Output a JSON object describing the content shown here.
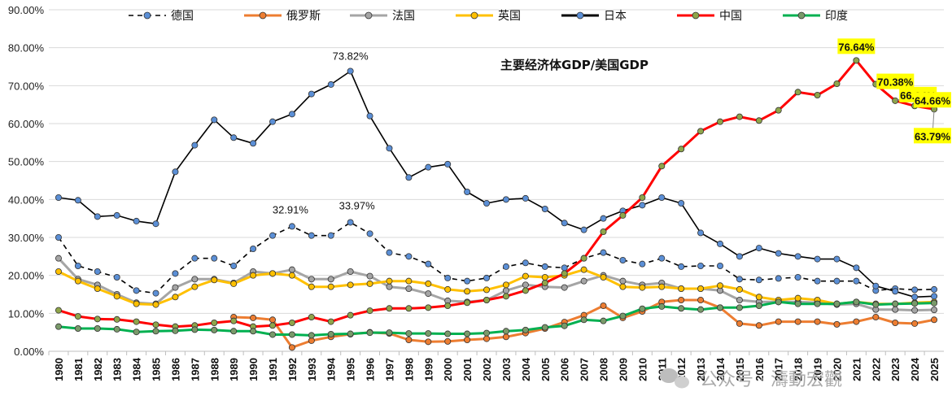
{
  "chart_data": {
    "type": "line",
    "title": "主要经济体GDP/美国GDP",
    "xlabel": "",
    "ylabel": "",
    "ylim": [
      0,
      90
    ],
    "yticks": [
      "0.00%",
      "10.00%",
      "20.00%",
      "30.00%",
      "40.00%",
      "50.00%",
      "60.00%",
      "70.00%",
      "80.00%",
      "90.00%"
    ],
    "grid": true,
    "legend_position": "top",
    "categories": [
      "1980",
      "1981",
      "1982",
      "1983",
      "1984",
      "1985",
      "1986",
      "1987",
      "1988",
      "1989",
      "1990",
      "1991",
      "1992",
      "1993",
      "1994",
      "1995",
      "1996",
      "1997",
      "1998",
      "1999",
      "2000",
      "2001",
      "2002",
      "2003",
      "2004",
      "2005",
      "2006",
      "2007",
      "2008",
      "2009",
      "2010",
      "2011",
      "2012",
      "2013",
      "2014",
      "2015",
      "2016",
      "2017",
      "2018",
      "2019",
      "2020",
      "2021",
      "2022",
      "2023",
      "2024",
      "2025"
    ],
    "series": [
      {
        "name": "德国",
        "color": "#000000",
        "marker": "#5b8fd6",
        "dashed": true,
        "values": [
          30,
          22.5,
          21,
          19.5,
          16,
          15.3,
          20.5,
          24.5,
          24.5,
          22.5,
          27,
          30.5,
          32.91,
          30.5,
          30.5,
          33.97,
          31,
          26,
          25,
          23,
          19.3,
          18.5,
          19.3,
          22.3,
          23.3,
          22.3,
          22,
          24.5,
          26,
          24,
          23,
          24.5,
          22.3,
          22.5,
          22.5,
          19,
          18.8,
          19.2,
          19.5,
          18.5,
          18.5,
          18.5,
          16,
          16.5,
          16.2,
          16.3
        ]
      },
      {
        "name": "俄罗斯",
        "color": "#ed7d31",
        "marker": "#ed7d31",
        "dashed": false,
        "values": [
          null,
          null,
          null,
          null,
          null,
          null,
          null,
          null,
          null,
          9,
          8.8,
          8.3,
          1,
          2.8,
          3.8,
          4.5,
          5,
          4.7,
          3,
          2.5,
          2.6,
          3,
          3.3,
          3.8,
          4.8,
          6,
          7.7,
          9.5,
          12,
          8.8,
          10.5,
          13,
          13.5,
          13.5,
          11.5,
          7.3,
          6.8,
          7.8,
          7.8,
          7.8,
          7.1,
          7.8,
          9,
          7.5,
          7.3,
          8.3
        ]
      },
      {
        "name": "法国",
        "color": "#a5a5a5",
        "marker": "#a5a5a5",
        "dashed": false,
        "values": [
          24.5,
          19,
          17.5,
          15,
          12.8,
          12.5,
          16.8,
          19,
          19,
          18,
          21,
          20.5,
          21.5,
          19,
          19,
          21,
          19.8,
          17,
          16.5,
          15.2,
          13.3,
          13,
          13.5,
          16,
          17.5,
          17,
          16.8,
          18.5,
          20,
          18.5,
          17.5,
          18,
          16.5,
          16.5,
          16,
          13.5,
          13,
          13,
          13,
          12.8,
          12.3,
          12.5,
          11,
          11,
          10.8,
          10.9
        ]
      },
      {
        "name": "英国",
        "color": "#ffc000",
        "marker": "#ffc000",
        "dashed": false,
        "values": [
          21,
          18.5,
          16.5,
          14.5,
          12.5,
          12.3,
          14.3,
          17,
          18.8,
          17.8,
          20,
          20.5,
          20,
          17,
          17,
          17.5,
          17.8,
          18.5,
          18.5,
          17.8,
          16.3,
          15.8,
          16.2,
          17.5,
          19.8,
          19.5,
          20,
          21.5,
          19.5,
          17,
          16.8,
          17,
          16.5,
          16.5,
          17.3,
          16.3,
          14.3,
          13.5,
          14,
          13.5,
          12.5,
          13,
          12.5,
          12.5,
          12.8,
          13
        ]
      },
      {
        "name": "日本",
        "color": "#000000",
        "marker": "#5b8fd6",
        "dashed": false,
        "values": [
          40.5,
          39.8,
          35.5,
          35.8,
          34.3,
          33.6,
          47.3,
          54.3,
          61,
          56.3,
          54.8,
          60.5,
          62.5,
          67.8,
          70.3,
          73.82,
          62,
          53.5,
          45.8,
          48.5,
          49.3,
          42,
          39,
          40,
          40.3,
          37.5,
          33.8,
          32,
          35,
          37,
          38.5,
          40.5,
          39,
          31.2,
          28.3,
          25,
          27.2,
          25.8,
          25,
          24.3,
          24.3,
          22,
          17.2,
          15.8,
          14.3,
          14.5
        ]
      },
      {
        "name": "中国",
        "color": "#ff0000",
        "marker": "#8fa54a",
        "dashed": false,
        "values": [
          10.8,
          9.2,
          8.5,
          8.4,
          7.8,
          7,
          6.5,
          6.8,
          7.5,
          8,
          6.5,
          6.8,
          7.5,
          9,
          7.8,
          9.5,
          10.7,
          11.3,
          11.3,
          11.5,
          12,
          12.8,
          13.5,
          14.5,
          16,
          18,
          20.5,
          24.5,
          31.5,
          35.8,
          40.5,
          48.8,
          53.3,
          58,
          60.5,
          61.8,
          60.8,
          63.5,
          68.3,
          67.5,
          70.5,
          76.64,
          70.38,
          66.04,
          64.66,
          63.79
        ]
      },
      {
        "name": "印度",
        "color": "#00b050",
        "marker": "#7a9a6a",
        "dashed": false,
        "values": [
          6.5,
          6,
          6,
          5.8,
          5.1,
          5.3,
          5.4,
          5.7,
          5.6,
          5.3,
          5.3,
          4.4,
          4.4,
          4.2,
          4.5,
          4.6,
          4.9,
          4.9,
          4.7,
          4.7,
          4.6,
          4.6,
          4.8,
          5.3,
          5.6,
          6.3,
          6.7,
          8.3,
          8,
          9.3,
          11.2,
          11.8,
          11.3,
          11,
          11.5,
          11.5,
          12,
          13,
          12.5,
          12.5,
          12.5,
          13,
          12.3,
          12.5,
          12.6,
          12.7
        ]
      }
    ],
    "annotations": [
      {
        "text": "73.82%",
        "series": "日本",
        "x": "1995",
        "highlight": false
      },
      {
        "text": "32.91%",
        "series": "德国",
        "x": "1992",
        "highlight": false
      },
      {
        "text": "33.97%",
        "series": "德国",
        "x": "1995",
        "highlight": false
      },
      {
        "text": "76.64%",
        "series": "中国",
        "x": "2021",
        "highlight": true
      },
      {
        "text": "70.38%",
        "series": "中国",
        "x": "2022",
        "highlight": true
      },
      {
        "text": "66.04%",
        "series": "中国",
        "x": "2023",
        "highlight": true
      },
      {
        "text": "64.66%",
        "series": "中国",
        "x": "2024",
        "highlight": true
      },
      {
        "text": "63.79%",
        "series": "中国",
        "x": "2025",
        "highlight": true
      }
    ],
    "watermark": "公众号 · 濤動宏觀"
  }
}
